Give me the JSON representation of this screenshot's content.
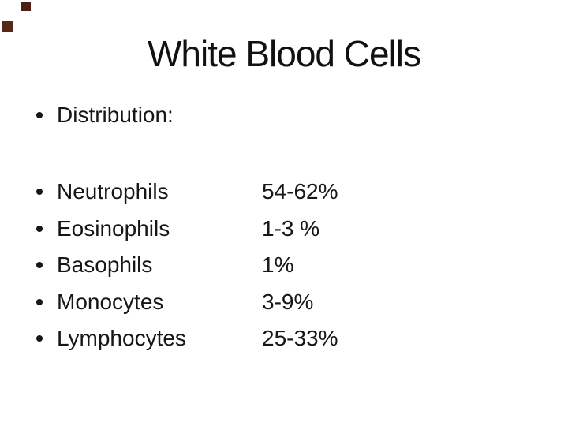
{
  "slide": {
    "title": "White Blood Cells",
    "heading": "Distribution:",
    "rows": [
      {
        "label": "Neutrophils",
        "value": "54-62%"
      },
      {
        "label": "Eosinophils",
        "value": "1-3 %"
      },
      {
        "label": "Basophils",
        "value": "1%"
      },
      {
        "label": "Monocytes",
        "value": "3-9%"
      },
      {
        "label": "Lymphocytes",
        "value": "25-33%"
      }
    ],
    "colors": {
      "background": "#ffffff",
      "text": "#161616",
      "corner_accent_top": "#4a2014",
      "corner_accent_left": "#572717"
    }
  }
}
